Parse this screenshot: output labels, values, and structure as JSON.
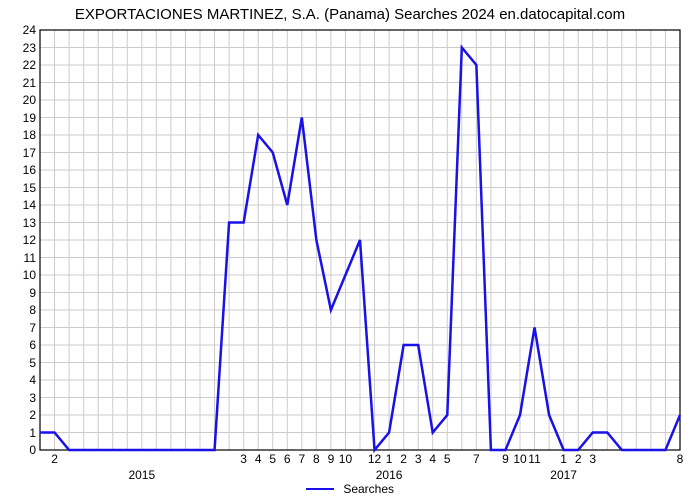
{
  "chart": {
    "type": "line",
    "title": "EXPORTACIONES MARTINEZ, S.A. (Panama) Searches 2024 en.datocapital.com",
    "title_fontsize": 15,
    "title_color": "#000000",
    "background_color": "#ffffff",
    "plot_border_color": "#000000",
    "grid_color": "#cccccc",
    "axis_font_size": 12,
    "line_color": "#1a10e8",
    "line_width": 2.5,
    "legend": {
      "label": "Searches",
      "position": "bottom-center",
      "swatch_color": "#1a10e8"
    },
    "y": {
      "min": 0,
      "max": 24,
      "tick_step": 1,
      "ticks": [
        0,
        1,
        2,
        3,
        4,
        5,
        6,
        7,
        8,
        9,
        10,
        11,
        12,
        13,
        14,
        15,
        16,
        17,
        18,
        19,
        20,
        21,
        22,
        23,
        24
      ]
    },
    "x": {
      "n_points": 45,
      "ticks": [
        {
          "i": 1,
          "label": "2"
        },
        {
          "i": 14,
          "label": "3"
        },
        {
          "i": 15,
          "label": "4"
        },
        {
          "i": 16,
          "label": "5"
        },
        {
          "i": 17,
          "label": "6"
        },
        {
          "i": 18,
          "label": "7"
        },
        {
          "i": 19,
          "label": "8"
        },
        {
          "i": 20,
          "label": "9"
        },
        {
          "i": 21,
          "label": "10"
        },
        {
          "i": 23,
          "label": "12"
        },
        {
          "i": 24,
          "label": "1"
        },
        {
          "i": 25,
          "label": "2"
        },
        {
          "i": 26,
          "label": "3"
        },
        {
          "i": 27,
          "label": "4"
        },
        {
          "i": 28,
          "label": "5"
        },
        {
          "i": 30,
          "label": "7"
        },
        {
          "i": 32,
          "label": "9"
        },
        {
          "i": 33,
          "label": "10"
        },
        {
          "i": 34,
          "label": "11"
        },
        {
          "i": 36,
          "label": "1"
        },
        {
          "i": 37,
          "label": "2"
        },
        {
          "i": 38,
          "label": "3"
        },
        {
          "i": 44,
          "label": "8"
        }
      ],
      "groups": [
        {
          "i": 7,
          "label": "2015"
        },
        {
          "i": 24,
          "label": "2016"
        },
        {
          "i": 36,
          "label": "2017"
        }
      ]
    },
    "series": [
      {
        "name": "Searches",
        "color": "#1a10e8",
        "values": [
          1,
          1,
          0,
          0,
          0,
          0,
          0,
          0,
          0,
          0,
          0,
          0,
          0,
          13,
          13,
          18,
          17,
          14,
          19,
          12,
          8,
          10,
          12,
          0,
          1,
          6,
          6,
          1,
          2,
          23,
          22,
          0,
          0,
          2,
          7,
          2,
          0,
          0,
          1,
          1,
          0,
          0,
          0,
          0,
          2
        ]
      }
    ]
  }
}
